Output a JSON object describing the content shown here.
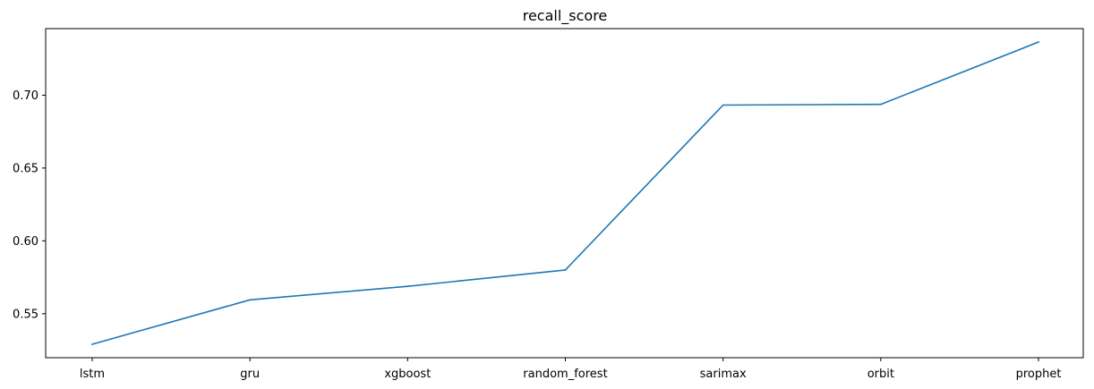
{
  "chart_data": {
    "type": "line",
    "title": "recall_score",
    "xlabel": "",
    "ylabel": "",
    "categories": [
      "lstm",
      "gru",
      "xgboost",
      "random_forest",
      "sarimax",
      "orbit",
      "prophet"
    ],
    "series": [
      {
        "values": [
          0.529,
          0.5595,
          0.5688,
          0.58,
          0.6932,
          0.6937,
          0.7365
        ]
      }
    ],
    "yticks": [
      0.55,
      0.6,
      0.65,
      0.7
    ],
    "ytick_labels": [
      "0.55",
      "0.60",
      "0.65",
      "0.70"
    ],
    "ylim": [
      0.5198,
      0.7457
    ],
    "grid": false,
    "legend": "none",
    "colors": {
      "line": "#1f77b4",
      "axes": "#000000",
      "background": "#ffffff"
    }
  }
}
